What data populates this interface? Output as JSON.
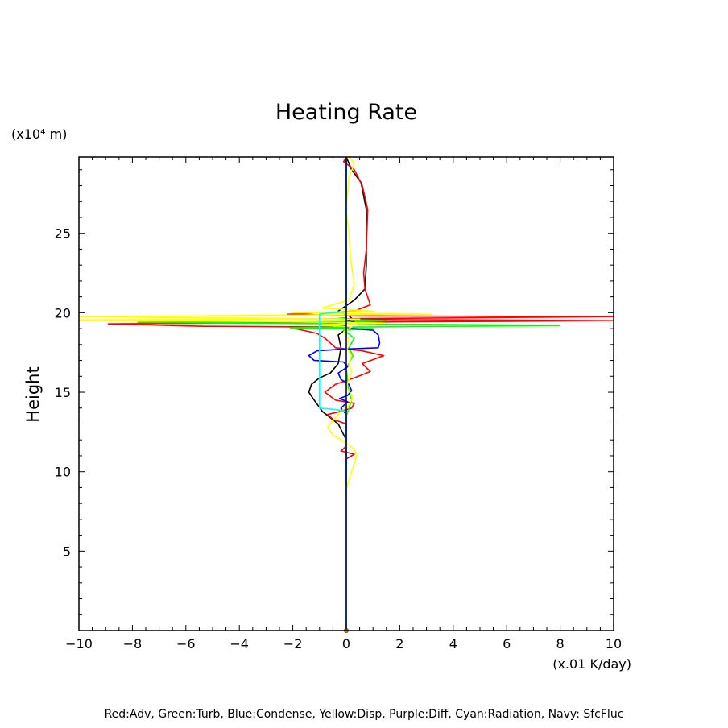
{
  "chart_data": {
    "type": "line",
    "title": "Heating Rate",
    "xlabel": "(x.01 K/day)",
    "ylabel": "Height",
    "y_unit_label": "(x10⁴ m)",
    "footer": "Red:Adv, Green:Turb, Blue:Condense, Yellow:Disp, Purple:Diff, Cyan:Radiation, Navy: SfcFluc",
    "xlim": [
      -10,
      10
    ],
    "ylim": [
      0,
      29.8
    ],
    "xticks": [
      -10,
      -8,
      -6,
      -4,
      -2,
      0,
      2,
      4,
      6,
      8,
      10
    ],
    "xtick_labels": [
      "−10",
      "−8",
      "−6",
      "−4",
      "−2",
      "0",
      "2",
      "4",
      "6",
      "8",
      "10"
    ],
    "yticks": [
      5,
      10,
      15,
      20,
      25
    ],
    "ytick_labels": [
      "5",
      "10",
      "15",
      "20",
      "25"
    ],
    "grid": false,
    "series": [
      {
        "id": "black",
        "color": "#000000",
        "points": [
          [
            0,
            0
          ],
          [
            0,
            12
          ],
          [
            -0.3,
            13
          ],
          [
            -0.9,
            13.8
          ],
          [
            -1.2,
            14.5
          ],
          [
            -1.4,
            15.0
          ],
          [
            -1.3,
            15.5
          ],
          [
            -1.0,
            15.9
          ],
          [
            -0.6,
            16.2
          ],
          [
            -0.3,
            16.8
          ],
          [
            -0.2,
            17.8
          ],
          [
            -0.3,
            18.6
          ],
          [
            0.1,
            19.1
          ],
          [
            -0.8,
            19.3
          ],
          [
            0.3,
            19.5
          ],
          [
            0.1,
            19.8
          ],
          [
            -0.3,
            20.1
          ],
          [
            0.3,
            20.8
          ],
          [
            0.7,
            21.5
          ],
          [
            0.75,
            23
          ],
          [
            0.75,
            26.5
          ],
          [
            0.55,
            28.2
          ],
          [
            0.2,
            29
          ],
          [
            0,
            29.8
          ]
        ]
      },
      {
        "id": "red",
        "color": "#ff0000",
        "points": [
          [
            0,
            0
          ],
          [
            0,
            10.8
          ],
          [
            0.3,
            11.1
          ],
          [
            -0.2,
            11.3
          ],
          [
            0,
            11.6
          ],
          [
            0,
            13.0
          ],
          [
            -0.5,
            13.3
          ],
          [
            -0.7,
            13.6
          ],
          [
            -0.2,
            13.8
          ],
          [
            0.2,
            14.0
          ],
          [
            0.3,
            14.3
          ],
          [
            -0.4,
            14.5
          ],
          [
            -0.8,
            15.0
          ],
          [
            -0.4,
            15.5
          ],
          [
            0.3,
            15.9
          ],
          [
            0.9,
            16.3
          ],
          [
            0.6,
            16.8
          ],
          [
            1.4,
            17.3
          ],
          [
            0.6,
            17.6
          ],
          [
            -0.4,
            17.8
          ],
          [
            -0.8,
            18.4
          ],
          [
            -1.1,
            18.7
          ],
          [
            -1.9,
            19.0
          ],
          [
            -0.5,
            19.1
          ],
          [
            -5.5,
            19.15
          ],
          [
            -8.9,
            19.3
          ],
          [
            -1.0,
            19.4
          ],
          [
            10,
            19.5
          ],
          [
            -2.0,
            19.6
          ],
          [
            10,
            19.75
          ],
          [
            0.4,
            19.8
          ],
          [
            -2.2,
            19.9
          ],
          [
            0.3,
            20.1
          ],
          [
            0.9,
            20.5
          ],
          [
            0.7,
            21.5
          ],
          [
            0.65,
            22.5
          ],
          [
            0.75,
            24
          ],
          [
            0.8,
            26.5
          ],
          [
            0.6,
            28
          ],
          [
            0.3,
            29
          ],
          [
            -0.1,
            29.5
          ],
          [
            0,
            29.8
          ]
        ]
      },
      {
        "id": "green",
        "color": "#00ff00",
        "points": [
          [
            0,
            0
          ],
          [
            0,
            13.5
          ],
          [
            0.1,
            14
          ],
          [
            0.2,
            14.5
          ],
          [
            0.1,
            15
          ],
          [
            0,
            16.5
          ],
          [
            0.25,
            17.3
          ],
          [
            0.1,
            17.8
          ],
          [
            0.3,
            18.4
          ],
          [
            -0.1,
            18.9
          ],
          [
            1.0,
            19.0
          ],
          [
            -2.1,
            19.05
          ],
          [
            0.5,
            19.1
          ],
          [
            8.0,
            19.2
          ],
          [
            0.3,
            19.3
          ],
          [
            -4.5,
            19.35
          ],
          [
            -7.8,
            19.4
          ],
          [
            0.6,
            19.45
          ],
          [
            1.5,
            19.5
          ],
          [
            -0.5,
            19.6
          ],
          [
            0,
            19.7
          ],
          [
            0,
            29.8
          ]
        ]
      },
      {
        "id": "blue",
        "color": "#0000ff",
        "points": [
          [
            0,
            0
          ],
          [
            0,
            13.6
          ],
          [
            -0.2,
            14.0
          ],
          [
            0.05,
            14.4
          ],
          [
            -0.25,
            14.6
          ],
          [
            0.05,
            14.8
          ],
          [
            0.2,
            15.1
          ],
          [
            0.1,
            15.5
          ],
          [
            -0.2,
            15.8
          ],
          [
            -0.3,
            16.2
          ],
          [
            0.05,
            16.6
          ],
          [
            -0.1,
            16.9
          ],
          [
            -1.2,
            17.0
          ],
          [
            -1.4,
            17.3
          ],
          [
            -1.1,
            17.6
          ],
          [
            -0.3,
            17.7
          ],
          [
            1.2,
            17.8
          ],
          [
            1.25,
            18.1
          ],
          [
            1.2,
            18.6
          ],
          [
            1.0,
            18.9
          ],
          [
            0.2,
            19.0
          ],
          [
            -0.1,
            19.2
          ],
          [
            0.3,
            19.4
          ],
          [
            0,
            19.6
          ],
          [
            0,
            29.8
          ]
        ]
      },
      {
        "id": "yellow",
        "color": "#ffff00",
        "points": [
          [
            0,
            0
          ],
          [
            0,
            8.8
          ],
          [
            0.1,
            9.5
          ],
          [
            0.4,
            11.0
          ],
          [
            0.3,
            11.4
          ],
          [
            0.0,
            11.8
          ],
          [
            -0.5,
            12.3
          ],
          [
            -0.7,
            12.8
          ],
          [
            -0.4,
            13.4
          ],
          [
            -0.2,
            13.8
          ],
          [
            0.1,
            14.2
          ],
          [
            0.25,
            14.7
          ],
          [
            0.0,
            15.3
          ],
          [
            0.2,
            16.3
          ],
          [
            0.1,
            16.8
          ],
          [
            0.2,
            17.3
          ],
          [
            0.0,
            17.8
          ],
          [
            0.1,
            18.3
          ],
          [
            -0.1,
            18.8
          ],
          [
            0.2,
            19.1
          ],
          [
            -0.9,
            19.25
          ],
          [
            1.4,
            19.35
          ],
          [
            -3.0,
            19.45
          ],
          [
            -10,
            19.55
          ],
          [
            0.5,
            19.6
          ],
          [
            -10,
            19.75
          ],
          [
            3.2,
            19.9
          ],
          [
            -2.0,
            20.0
          ],
          [
            1.0,
            20.1
          ],
          [
            -0.9,
            20.3
          ],
          [
            0.1,
            20.8
          ],
          [
            0.3,
            21.8
          ],
          [
            0.15,
            23.5
          ],
          [
            0.1,
            25
          ],
          [
            0.0,
            26.5
          ],
          [
            0.1,
            28.5
          ],
          [
            0.3,
            29.4
          ],
          [
            0.1,
            29.8
          ]
        ]
      },
      {
        "id": "cyan",
        "color": "#00ffff",
        "points": [
          [
            0,
            0
          ],
          [
            0,
            13.8
          ],
          [
            -0.35,
            13.9
          ],
          [
            -1.0,
            14.0
          ],
          [
            -1.0,
            15.0
          ],
          [
            -1.0,
            17.0
          ],
          [
            -1.0,
            19.0
          ],
          [
            -1.0,
            19.9
          ],
          [
            -0.6,
            20.0
          ],
          [
            0,
            20.05
          ],
          [
            0,
            29.8
          ]
        ]
      },
      {
        "id": "navy",
        "color": "#000080",
        "points": [
          [
            0,
            0
          ],
          [
            0,
            29.8
          ]
        ]
      }
    ]
  }
}
